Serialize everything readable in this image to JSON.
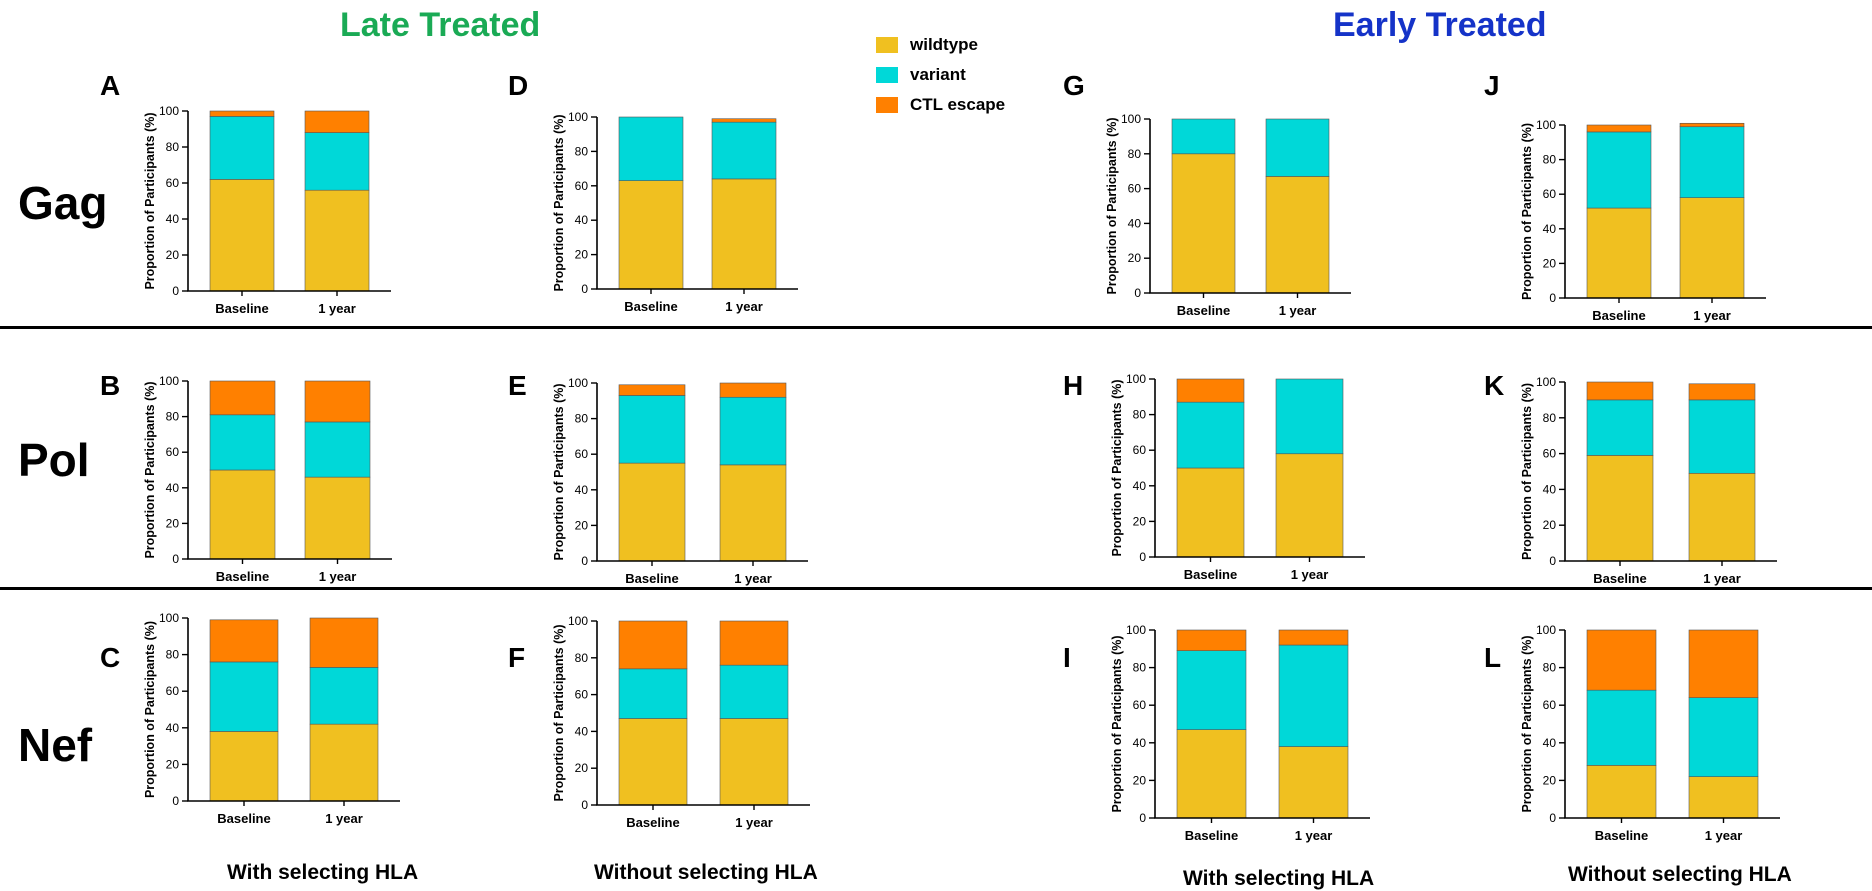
{
  "groups": {
    "late_title": "Late Treated",
    "early_title": "Early Treated",
    "late_color": "#1aaa55",
    "early_color": "#1533c8"
  },
  "genes": [
    "Gag",
    "Pol",
    "Nef"
  ],
  "footers": [
    "With selecting HLA",
    "Without selecting HLA",
    "With selecting HLA",
    "Without selecting HLA"
  ],
  "legend": [
    {
      "label": "wildtype",
      "color": "#f0c020"
    },
    {
      "label": "variant",
      "color": "#00d8d8"
    },
    {
      "label": "CTL escape",
      "color": "#ff8000"
    }
  ],
  "chart_data": [
    {
      "panel": "A",
      "type": "bar",
      "stacked": true,
      "categories": [
        "Baseline",
        "1 year"
      ],
      "ylabel": "Proportion of Participants (%)",
      "ylim": [
        0,
        100
      ],
      "yticks": [
        0,
        20,
        40,
        60,
        80,
        100
      ],
      "series": [
        {
          "name": "wildtype",
          "values": [
            62,
            56
          ]
        },
        {
          "name": "variant",
          "values": [
            35,
            32
          ]
        },
        {
          "name": "CTL escape",
          "values": [
            3,
            12
          ]
        }
      ]
    },
    {
      "panel": "B",
      "type": "bar",
      "stacked": true,
      "categories": [
        "Baseline",
        "1 year"
      ],
      "ylabel": "Proportion of Participants (%)",
      "ylim": [
        0,
        100
      ],
      "yticks": [
        0,
        20,
        40,
        60,
        80,
        100
      ],
      "series": [
        {
          "name": "wildtype",
          "values": [
            50,
            46
          ]
        },
        {
          "name": "variant",
          "values": [
            31,
            31
          ]
        },
        {
          "name": "CTL escape",
          "values": [
            19,
            23
          ]
        }
      ]
    },
    {
      "panel": "C",
      "type": "bar",
      "stacked": true,
      "categories": [
        "Baseline",
        "1 year"
      ],
      "ylabel": "Proportion of Participants (%)",
      "ylim": [
        0,
        100
      ],
      "yticks": [
        0,
        20,
        40,
        60,
        80,
        100
      ],
      "series": [
        {
          "name": "wildtype",
          "values": [
            38,
            42
          ]
        },
        {
          "name": "variant",
          "values": [
            38,
            31
          ]
        },
        {
          "name": "CTL escape",
          "values": [
            23,
            27
          ]
        }
      ]
    },
    {
      "panel": "D",
      "type": "bar",
      "stacked": true,
      "categories": [
        "Baseline",
        "1 year"
      ],
      "ylabel": "Proportion of Participants (%)",
      "ylim": [
        0,
        100
      ],
      "yticks": [
        0,
        20,
        40,
        60,
        80,
        100
      ],
      "series": [
        {
          "name": "wildtype",
          "values": [
            63,
            64
          ]
        },
        {
          "name": "variant",
          "values": [
            37,
            33
          ]
        },
        {
          "name": "CTL escape",
          "values": [
            0,
            2
          ]
        }
      ]
    },
    {
      "panel": "E",
      "type": "bar",
      "stacked": true,
      "categories": [
        "Baseline",
        "1 year"
      ],
      "ylabel": "Proportion of Participants (%)",
      "ylim": [
        0,
        100
      ],
      "yticks": [
        0,
        20,
        40,
        60,
        80,
        100
      ],
      "series": [
        {
          "name": "wildtype",
          "values": [
            55,
            54
          ]
        },
        {
          "name": "variant",
          "values": [
            38,
            38
          ]
        },
        {
          "name": "CTL escape",
          "values": [
            6,
            8
          ]
        }
      ]
    },
    {
      "panel": "F",
      "type": "bar",
      "stacked": true,
      "categories": [
        "Baseline",
        "1 year"
      ],
      "ylabel": "Proportion of Participants (%)",
      "ylim": [
        0,
        100
      ],
      "yticks": [
        0,
        20,
        40,
        60,
        80,
        100
      ],
      "series": [
        {
          "name": "wildtype",
          "values": [
            47,
            47
          ]
        },
        {
          "name": "variant",
          "values": [
            27,
            29
          ]
        },
        {
          "name": "CTL escape",
          "values": [
            26,
            24
          ]
        }
      ]
    },
    {
      "panel": "G",
      "type": "bar",
      "stacked": true,
      "categories": [
        "Baseline",
        "1 year"
      ],
      "ylabel": "Proportion of Participants (%)",
      "ylim": [
        0,
        100
      ],
      "yticks": [
        0,
        20,
        40,
        60,
        80,
        100
      ],
      "series": [
        {
          "name": "wildtype",
          "values": [
            80,
            67
          ]
        },
        {
          "name": "variant",
          "values": [
            20,
            33
          ]
        },
        {
          "name": "CTL escape",
          "values": [
            0,
            0
          ]
        }
      ]
    },
    {
      "panel": "H",
      "type": "bar",
      "stacked": true,
      "categories": [
        "Baseline",
        "1 year"
      ],
      "ylabel": "Proportion of Participants (%)",
      "ylim": [
        0,
        100
      ],
      "yticks": [
        0,
        20,
        40,
        60,
        80,
        100
      ],
      "series": [
        {
          "name": "wildtype",
          "values": [
            50,
            58
          ]
        },
        {
          "name": "variant",
          "values": [
            37,
            42
          ]
        },
        {
          "name": "CTL escape",
          "values": [
            13,
            0
          ]
        }
      ]
    },
    {
      "panel": "I",
      "type": "bar",
      "stacked": true,
      "categories": [
        "Baseline",
        "1 year"
      ],
      "ylabel": "Proportion of Participants (%)",
      "ylim": [
        0,
        100
      ],
      "yticks": [
        0,
        20,
        40,
        60,
        80,
        100
      ],
      "series": [
        {
          "name": "wildtype",
          "values": [
            47,
            38
          ]
        },
        {
          "name": "variant",
          "values": [
            42,
            54
          ]
        },
        {
          "name": "CTL escape",
          "values": [
            11,
            8
          ]
        }
      ]
    },
    {
      "panel": "J",
      "type": "bar",
      "stacked": true,
      "categories": [
        "Baseline",
        "1 year"
      ],
      "ylabel": "Proportion of Participants (%)",
      "ylim": [
        0,
        100
      ],
      "yticks": [
        0,
        20,
        40,
        60,
        80,
        100
      ],
      "series": [
        {
          "name": "wildtype",
          "values": [
            52,
            58
          ]
        },
        {
          "name": "variant",
          "values": [
            44,
            41
          ]
        },
        {
          "name": "CTL escape",
          "values": [
            4,
            2
          ]
        }
      ]
    },
    {
      "panel": "K",
      "type": "bar",
      "stacked": true,
      "categories": [
        "Baseline",
        "1 year"
      ],
      "ylabel": "Proportion of Participants (%)",
      "ylim": [
        0,
        100
      ],
      "yticks": [
        0,
        20,
        40,
        60,
        80,
        100
      ],
      "series": [
        {
          "name": "wildtype",
          "values": [
            59,
            49
          ]
        },
        {
          "name": "variant",
          "values": [
            31,
            41
          ]
        },
        {
          "name": "CTL escape",
          "values": [
            10,
            9
          ]
        }
      ]
    },
    {
      "panel": "L",
      "type": "bar",
      "stacked": true,
      "categories": [
        "Baseline",
        "1 year"
      ],
      "ylabel": "Proportion of Participants (%)",
      "ylim": [
        0,
        100
      ],
      "yticks": [
        0,
        20,
        40,
        60,
        80,
        100
      ],
      "series": [
        {
          "name": "wildtype",
          "values": [
            28,
            22
          ]
        },
        {
          "name": "variant",
          "values": [
            40,
            42
          ]
        },
        {
          "name": "CTL escape",
          "values": [
            32,
            36
          ]
        }
      ]
    }
  ]
}
